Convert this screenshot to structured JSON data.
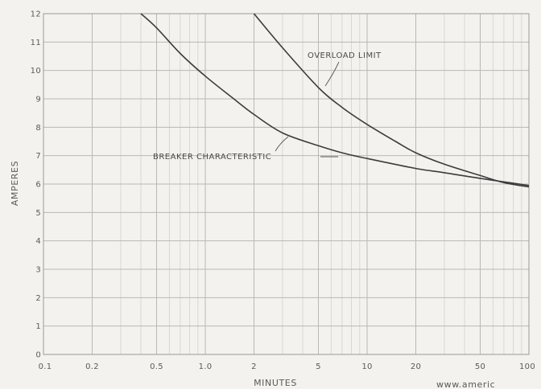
{
  "chart_data": {
    "type": "line",
    "xlabel": "MINUTES",
    "ylabel": "AMPERES",
    "x_scale": "log",
    "xlim": [
      0.1,
      100
    ],
    "ylim": [
      0,
      12
    ],
    "grid": true,
    "x_tick_values": [
      0.1,
      0.2,
      0.5,
      1,
      2,
      5,
      10,
      20,
      50,
      100
    ],
    "x_tick_labels": [
      "0.1",
      "0.2",
      "0.5",
      "1.0",
      "2",
      "5",
      "10",
      "20",
      "50",
      "100"
    ],
    "y_tick_labels": [
      "0",
      "1",
      "2",
      "3",
      "4",
      "5",
      "6",
      "7",
      "8",
      "9",
      "10",
      "11",
      "12"
    ],
    "series": [
      {
        "name": "OVERLOAD LIMIT",
        "x": [
          2,
          3,
          5,
          7,
          10,
          15,
          20,
          30,
          50,
          70,
          100
        ],
        "y": [
          12,
          10.8,
          9.4,
          8.7,
          8.1,
          7.5,
          7.1,
          6.7,
          6.3,
          6.05,
          5.9
        ]
      },
      {
        "name": "BREAKER CHARACTERISTIC",
        "x": [
          0.4,
          0.5,
          0.7,
          1,
          1.5,
          2,
          3,
          5,
          7,
          10,
          20,
          30,
          50,
          100
        ],
        "y": [
          12,
          11.5,
          10.6,
          9.8,
          9,
          8.45,
          7.8,
          7.35,
          7.1,
          6.9,
          6.55,
          6.4,
          6.2,
          5.95
        ]
      }
    ],
    "footer_text": "www.americ"
  }
}
